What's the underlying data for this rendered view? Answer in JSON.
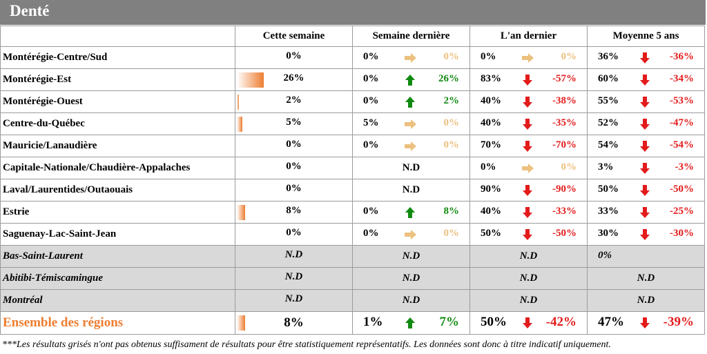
{
  "title": "Denté",
  "columns": [
    "",
    "Cette semaine",
    "Semaine dernière",
    "L'an dernier",
    "Moyenne 5 ans"
  ],
  "rows": [
    {
      "region": "Montérégie-Centre/Sud",
      "grey": false,
      "cw": "0%",
      "cw_frac": 0,
      "lw": {
        "v": "0%",
        "arrow": "right",
        "d": "0%"
      },
      "ly": {
        "v": "0%",
        "arrow": "right",
        "d": "0%"
      },
      "a5": {
        "v": "36%",
        "arrow": "down",
        "d": "-36%"
      }
    },
    {
      "region": "Montérégie-Est",
      "grey": false,
      "cw": "26%",
      "cw_frac": 0.26,
      "lw": {
        "v": "0%",
        "arrow": "up",
        "d": "26%"
      },
      "ly": {
        "v": "83%",
        "arrow": "down",
        "d": "-57%"
      },
      "a5": {
        "v": "60%",
        "arrow": "down",
        "d": "-34%"
      }
    },
    {
      "region": "Montérégie-Ouest",
      "grey": false,
      "cw": "2%",
      "cw_frac": 0.02,
      "lw": {
        "v": "0%",
        "arrow": "up",
        "d": "2%"
      },
      "ly": {
        "v": "40%",
        "arrow": "down",
        "d": "-38%"
      },
      "a5": {
        "v": "55%",
        "arrow": "down",
        "d": "-53%"
      }
    },
    {
      "region": "Centre-du-Québec",
      "grey": false,
      "cw": "5%",
      "cw_frac": 0.05,
      "lw": {
        "v": "5%",
        "arrow": "right",
        "d": "0%"
      },
      "ly": {
        "v": "40%",
        "arrow": "down",
        "d": "-35%"
      },
      "a5": {
        "v": "52%",
        "arrow": "down",
        "d": "-47%"
      }
    },
    {
      "region": "Mauricie/Lanaudière",
      "grey": false,
      "cw": "0%",
      "cw_frac": 0,
      "lw": {
        "v": "0%",
        "arrow": "right",
        "d": "0%"
      },
      "ly": {
        "v": "70%",
        "arrow": "down",
        "d": "-70%"
      },
      "a5": {
        "v": "54%",
        "arrow": "down",
        "d": "-54%"
      }
    },
    {
      "region": "Capitale-Nationale/Chaudière-Appalaches",
      "grey": false,
      "cw": "0%",
      "cw_frac": 0,
      "lw": {
        "nd": "N.D"
      },
      "ly": {
        "v": "0%",
        "arrow": "right",
        "d": "0%"
      },
      "a5": {
        "v": "3%",
        "arrow": "down",
        "d": "-3%"
      }
    },
    {
      "region": "Laval/Laurentides/Outaouais",
      "grey": false,
      "cw": "0%",
      "cw_frac": 0,
      "lw": {
        "nd": "N.D"
      },
      "ly": {
        "v": "90%",
        "arrow": "down",
        "d": "-90%"
      },
      "a5": {
        "v": "50%",
        "arrow": "down",
        "d": "-50%"
      }
    },
    {
      "region": "Estrie",
      "grey": false,
      "cw": "8%",
      "cw_frac": 0.08,
      "lw": {
        "v": "0%",
        "arrow": "up",
        "d": "8%"
      },
      "ly": {
        "v": "40%",
        "arrow": "down",
        "d": "-33%"
      },
      "a5": {
        "v": "33%",
        "arrow": "down",
        "d": "-25%"
      }
    },
    {
      "region": "Saguenay-Lac-Saint-Jean",
      "grey": false,
      "cw": "0%",
      "cw_frac": 0,
      "lw": {
        "v": "0%",
        "arrow": "right",
        "d": "0%"
      },
      "ly": {
        "v": "50%",
        "arrow": "down",
        "d": "-50%"
      },
      "a5": {
        "v": "30%",
        "arrow": "down",
        "d": "-30%"
      }
    },
    {
      "region": "Bas-Saint-Laurent",
      "grey": true,
      "cw": "N.D",
      "lw": {
        "nd": "N.D"
      },
      "ly": {
        "nd": "N.D"
      },
      "a5": {
        "left": "0%"
      }
    },
    {
      "region": "Abitibi-Témiscamingue",
      "grey": true,
      "cw": "N.D",
      "lw": {
        "nd": "N.D"
      },
      "ly": {
        "nd": "N.D"
      },
      "a5": {
        "nd": "N.D"
      }
    },
    {
      "region": "Montréal",
      "grey": true,
      "cw": "N.D",
      "lw": {
        "nd": "N.D"
      },
      "ly": {
        "nd": "N.D"
      },
      "a5": {
        "nd": "N.D"
      }
    }
  ],
  "total": {
    "region": "Ensemble des régions",
    "cw": "8%",
    "cw_frac": 0.08,
    "lw": {
      "v": "1%",
      "arrow": "up",
      "d": "7%"
    },
    "ly": {
      "v": "50%",
      "arrow": "down",
      "d": "-42%"
    },
    "a5": {
      "v": "47%",
      "arrow": "down",
      "d": "-39%"
    }
  },
  "colors": {
    "up": "#108a10",
    "down": "#e31b1b",
    "flat": "#ecc07e",
    "bar": "#ed7d31",
    "total_label": "#ed7d31",
    "grey_row": "#d9d9d9"
  },
  "footnote": "***Les résultats grisés n'ont pas obtenus suffisament de résultats pour être statistiquement représentatifs. Les données sont donc à titre indicatif uniquement."
}
